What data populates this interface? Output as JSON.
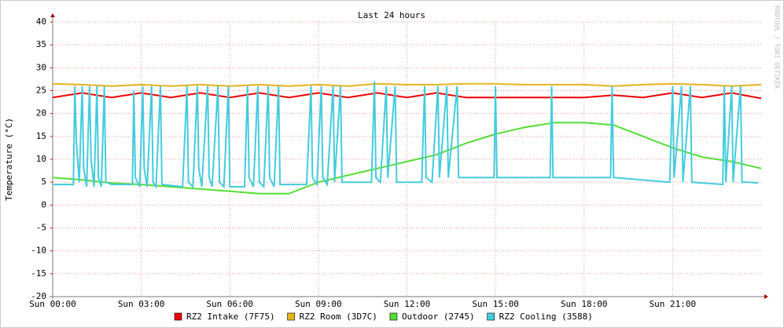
{
  "chart_data": {
    "type": "line",
    "title": "Last 24 hours",
    "y_label": "Temperature (°C)",
    "watermark": "RRDTOOL / TOBI OETIKER",
    "xlim": [
      0,
      24
    ],
    "ylim": [
      -20,
      40
    ],
    "xticks": [
      {
        "value": 0,
        "label": "Sun 00:00"
      },
      {
        "value": 3,
        "label": "Sun 03:00"
      },
      {
        "value": 6,
        "label": "Sun 06:00"
      },
      {
        "value": 9,
        "label": "Sun 09:00"
      },
      {
        "value": 12,
        "label": "Sun 12:00"
      },
      {
        "value": 15,
        "label": "Sun 15:00"
      },
      {
        "value": 18,
        "label": "Sun 18:00"
      },
      {
        "value": 21,
        "label": "Sun 21:00"
      }
    ],
    "yticks": [
      -20,
      -15,
      -10,
      -5,
      0,
      5,
      10,
      15,
      20,
      25,
      30,
      35,
      40
    ],
    "grid": true,
    "x": [
      0,
      1,
      2,
      3,
      4,
      5,
      6,
      7,
      8,
      9,
      10,
      11,
      12,
      13,
      14,
      15,
      16,
      17,
      18,
      19,
      20,
      21,
      22,
      23,
      24
    ],
    "series": [
      {
        "name": "RZ2 Intake (7F75)",
        "color": "#ee0000",
        "values": [
          23.5,
          24.5,
          23.5,
          24.5,
          23.5,
          24.5,
          23.5,
          24.5,
          23.5,
          24.5,
          23.5,
          24.5,
          23.5,
          24.5,
          23.5,
          23.5,
          23.5,
          23.5,
          23.5,
          24,
          23.5,
          24.5,
          23.5,
          24.5,
          23.3
        ]
      },
      {
        "name": "RZ2 Room (3D7C)",
        "color": "#e5b31e",
        "values": [
          26.5,
          26.3,
          26,
          26.3,
          26,
          26.3,
          26,
          26.3,
          26,
          26.3,
          26,
          26.5,
          26.3,
          26.3,
          26.5,
          26.5,
          26.3,
          26.3,
          26.3,
          26,
          26.3,
          26.5,
          26.3,
          26,
          26.3
        ]
      },
      {
        "name": "Outdoor (2745)",
        "color": "#55dd33",
        "values": [
          6,
          5.5,
          4.8,
          4.5,
          4,
          3.5,
          3,
          2.5,
          2.5,
          5,
          6.5,
          8,
          9.5,
          11,
          13.5,
          15.5,
          17,
          18,
          18,
          17.5,
          15,
          12.5,
          10.5,
          9.5,
          8
        ]
      },
      {
        "name": "RZ2 Cooling (3588)",
        "color": "#44ccdd",
        "x": [
          0,
          0.7,
          0.75,
          0.8,
          0.9,
          1.0,
          1.05,
          1.15,
          1.25,
          1.3,
          1.4,
          1.5,
          1.55,
          1.65,
          1.75,
          1.8,
          2.0,
          2.7,
          2.75,
          2.8,
          2.95,
          3.05,
          3.1,
          3.2,
          3.35,
          3.4,
          3.5,
          3.65,
          3.7,
          4.4,
          4.55,
          4.6,
          4.75,
          4.9,
          4.95,
          5.05,
          5.25,
          5.3,
          5.4,
          5.6,
          5.65,
          5.8,
          5.95,
          6.0,
          6.5,
          6.6,
          6.65,
          6.8,
          6.95,
          7.0,
          7.15,
          7.3,
          7.35,
          7.5,
          7.65,
          7.7,
          8.6,
          8.75,
          8.8,
          8.95,
          9.1,
          9.15,
          9.3,
          9.5,
          9.55,
          9.75,
          9.8,
          10.8,
          10.9,
          10.95,
          11.1,
          11.3,
          11.35,
          11.6,
          11.65,
          12.5,
          12.6,
          12.65,
          12.85,
          13.05,
          13.1,
          13.35,
          13.4,
          13.7,
          13.75,
          14.95,
          15.0,
          15.05,
          16.85,
          16.9,
          16.95,
          18.9,
          18.95,
          19.0,
          20.9,
          21.0,
          21.05,
          21.3,
          21.35,
          21.6,
          21.65,
          22.7,
          22.75,
          22.8,
          23.0,
          23.05,
          23.3,
          23.35,
          23.6,
          23.9
        ],
        "values": [
          4.5,
          4.5,
          26,
          14,
          5,
          26,
          8,
          4,
          26,
          10,
          4,
          26,
          6,
          4,
          26,
          5,
          4.5,
          4.5,
          25,
          6,
          4,
          26,
          8,
          4,
          26,
          5,
          4,
          26,
          4.5,
          4,
          26,
          5,
          4,
          26,
          8,
          4,
          26,
          6,
          4,
          26,
          5,
          4,
          26,
          4,
          4,
          26,
          6,
          4,
          26,
          5,
          4,
          26,
          6,
          4,
          26,
          4.5,
          4.5,
          26,
          6,
          4.5,
          26,
          6,
          4.5,
          26,
          5,
          26,
          5,
          5,
          27,
          6,
          5,
          26,
          6,
          26,
          5,
          5,
          26,
          6,
          5,
          26,
          6,
          26,
          6,
          26,
          6,
          6,
          26,
          6,
          6,
          26,
          6,
          6,
          26,
          6,
          5,
          26,
          6,
          26,
          5,
          26,
          5,
          4.5,
          26,
          5,
          26,
          5,
          26,
          5,
          5,
          4.8
        ]
      }
    ]
  }
}
